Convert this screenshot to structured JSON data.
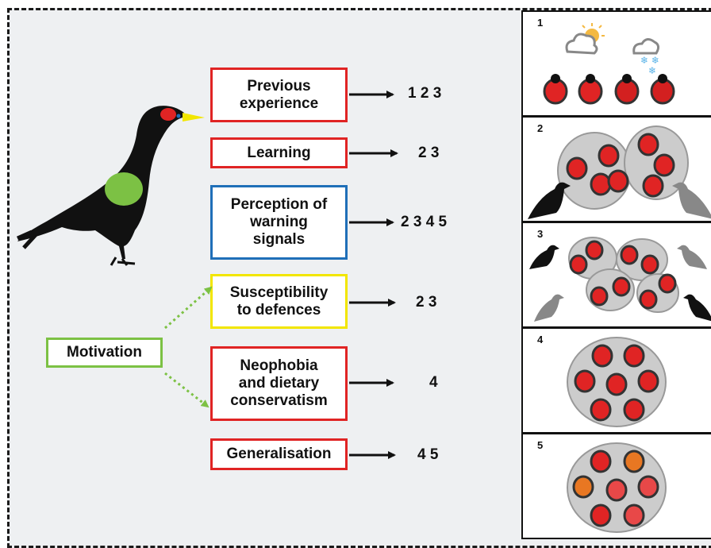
{
  "factors": [
    {
      "label_lines": [
        "Previous",
        "experience"
      ],
      "numbers": "1 2 3",
      "color": "#e02424"
    },
    {
      "label_lines": [
        "Learning"
      ],
      "numbers": "2 3",
      "color": "#e02424"
    },
    {
      "label_lines": [
        "Perception of",
        "warning",
        "signals"
      ],
      "numbers": "2 3 4 5",
      "color": "#1f6fb8"
    },
    {
      "label_lines": [
        "Susceptibility",
        "to defences"
      ],
      "numbers": "2 3",
      "color": "#f2e600"
    },
    {
      "label_lines": [
        "Neophobia",
        "and dietary",
        "conservatism"
      ],
      "numbers": "4",
      "color": "#e02424"
    },
    {
      "label_lines": [
        "Generalisation"
      ],
      "numbers": "4 5",
      "color": "#e02424"
    }
  ],
  "motivation": {
    "label": "Motivation",
    "color": "#7cc144"
  },
  "panels": [
    {
      "number": "1"
    },
    {
      "number": "2"
    },
    {
      "number": "3"
    },
    {
      "number": "4"
    },
    {
      "number": "5"
    }
  ],
  "colors": {
    "red": "#e02424",
    "blue": "#1f6fb8",
    "yellow": "#f2e600",
    "green": "#7cc144",
    "orange": "#e87722"
  }
}
